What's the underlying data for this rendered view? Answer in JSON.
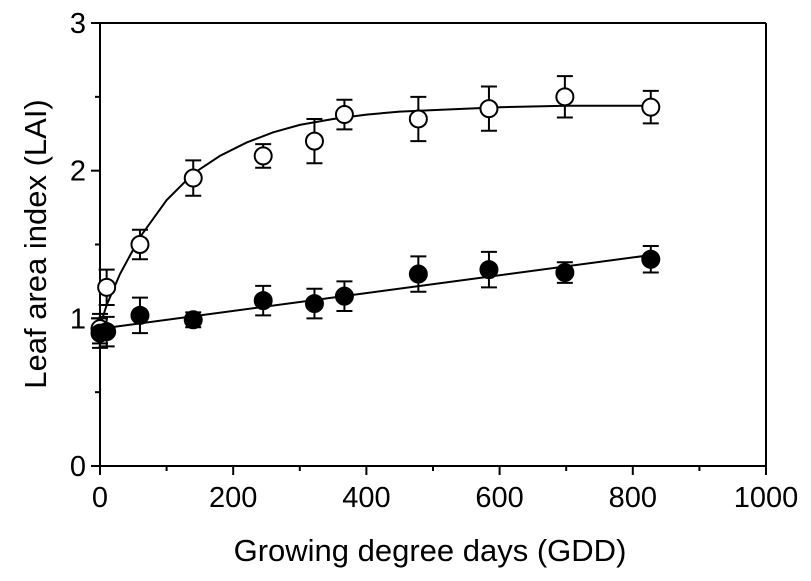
{
  "chart_data": {
    "type": "scatter",
    "title": "",
    "xlabel": "Growing degree days (GDD)",
    "ylabel": "Leaf area index (LAI)",
    "xlim": [
      0,
      1000
    ],
    "ylim": [
      0,
      3
    ],
    "x_ticks": [
      "0",
      "200",
      "400",
      "600",
      "800",
      "1000"
    ],
    "y_ticks": [
      "0",
      "1",
      "2",
      "3"
    ],
    "x_minor_step": 100,
    "y_minor_step": 0.5,
    "grid": false,
    "legend": "none",
    "series": [
      {
        "marker": "open-circle",
        "fit": "saturating-curve",
        "x": [
          0,
          10,
          60,
          140,
          245,
          322,
          367,
          478,
          584,
          698,
          827
        ],
        "y": [
          0.93,
          1.21,
          1.5,
          1.95,
          2.1,
          2.2,
          2.38,
          2.35,
          2.42,
          2.5,
          2.43
        ],
        "error": [
          0.1,
          0.12,
          0.1,
          0.12,
          0.08,
          0.15,
          0.1,
          0.15,
          0.15,
          0.14,
          0.11
        ],
        "fit_x": [
          0,
          10,
          30,
          60,
          100,
          140,
          180,
          220,
          260,
          300,
          350,
          400,
          450,
          500,
          600,
          700,
          830
        ],
        "fit_y": [
          0.95,
          1.09,
          1.3,
          1.55,
          1.8,
          1.98,
          2.1,
          2.19,
          2.26,
          2.31,
          2.35,
          2.38,
          2.4,
          2.41,
          2.43,
          2.44,
          2.44
        ]
      },
      {
        "marker": "filled-circle",
        "fit": "linear",
        "x": [
          0,
          10,
          60,
          140,
          245,
          322,
          367,
          478,
          584,
          698,
          827
        ],
        "y": [
          0.9,
          0.91,
          1.02,
          0.99,
          1.12,
          1.1,
          1.15,
          1.3,
          1.33,
          1.31,
          1.4
        ],
        "error": [
          0.1,
          0.1,
          0.12,
          0.05,
          0.1,
          0.1,
          0.1,
          0.12,
          0.12,
          0.07,
          0.09
        ],
        "fit_x": [
          0,
          830
        ],
        "fit_y": [
          0.93,
          1.43
        ]
      }
    ]
  }
}
